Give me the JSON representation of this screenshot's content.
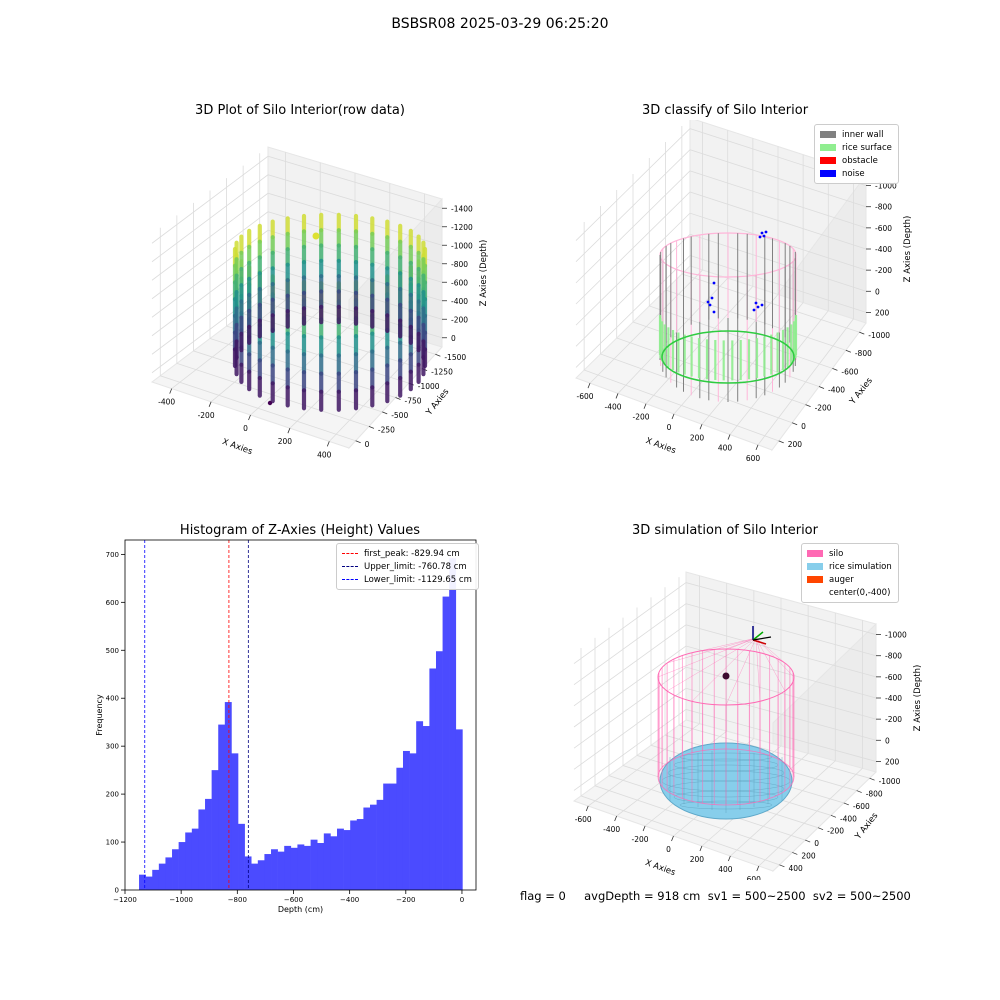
{
  "suptitle": "BSBSR08 2025-03-29 06:25:20",
  "footer": "flag = 0     avgDepth = 918 cm  sv1 = 500~2500  sv2 = 500~2500",
  "colors": {
    "inner_wall": "#808080",
    "rice_surface": "#90ee90",
    "obstacle": "#ff0000",
    "noise": "#0000ff",
    "silo": "#ff69b4",
    "rice_simulation": "#87ceeb",
    "auger": "#ff4500",
    "hist_bar": "#4b4bff"
  },
  "chart_data": [
    {
      "type": "scatter",
      "projection": "3d",
      "colormap": "viridis",
      "title": "3D Plot of Silo Interior(row data)",
      "xlabel": "X Axies",
      "ylabel": "Y Axies",
      "zlabel": "Z Axies (Depth)",
      "xticks": [
        "-400",
        "-200",
        "0",
        "200",
        "400"
      ],
      "yticks": [
        "0",
        "-250",
        "-500",
        "-750",
        "-1000",
        "-1250",
        "-1500"
      ],
      "zticks": [
        "0",
        "-200",
        "-400",
        "-600",
        "-800",
        "-1000",
        "-1200",
        "-1400"
      ],
      "xlim": [
        -500,
        500
      ],
      "ylim": [
        -1550,
        50
      ],
      "zlim": [
        -1450,
        50
      ]
    },
    {
      "type": "scatter",
      "projection": "3d",
      "title": "3D classify of Silo Interior",
      "xlabel": "X Axies",
      "ylabel": "Y Axies",
      "zlabel": "Z Axies (Depth)",
      "xticks": [
        "-600",
        "-400",
        "-200",
        "0",
        "200",
        "400",
        "600"
      ],
      "yticks": [
        "200",
        "0",
        "-200",
        "-400",
        "-600",
        "-800",
        "-1000"
      ],
      "zticks": [
        "200",
        "0",
        "-200",
        "-400",
        "-600",
        "-800",
        "-1000"
      ],
      "xlim": [
        -700,
        700
      ],
      "ylim": [
        -1100,
        300
      ],
      "zlim": [
        -1100,
        300
      ],
      "legend": [
        "inner wall",
        "rice surface",
        "obstacle",
        "noise"
      ],
      "legend_loc": "upper right"
    },
    {
      "type": "bar",
      "title": "Histogram of Z-Axies (Height) Values",
      "xlabel": "Depth (cm)",
      "ylabel": "Frequency",
      "xticks": [
        -1200,
        -1000,
        -800,
        -600,
        -400,
        -200,
        0
      ],
      "yticks": [
        0,
        100,
        200,
        300,
        400,
        500,
        600,
        700
      ],
      "xlim": [
        -1200,
        50
      ],
      "ylim": [
        0,
        730
      ],
      "bin_start": -1150,
      "bin_width": 23.5,
      "values": [
        32,
        28,
        42,
        55,
        68,
        85,
        100,
        120,
        128,
        168,
        190,
        250,
        345,
        392,
        285,
        138,
        70,
        55,
        62,
        75,
        85,
        80,
        92,
        88,
        95,
        92,
        105,
        98,
        118,
        112,
        128,
        125,
        145,
        148,
        172,
        178,
        188,
        222,
        222,
        255,
        290,
        285,
        352,
        342,
        462,
        498,
        612,
        692,
        335
      ],
      "vlines": [
        {
          "label": "first_peak: -829.94 cm",
          "x": -829.94,
          "color": "#ff0000"
        },
        {
          "label": "Upper_limit: -760.78 cm",
          "x": -760.78,
          "color": "#000080"
        },
        {
          "label": "Lower_limit: -1129.65 cm",
          "x": -1129.65,
          "color": "#0000ff"
        }
      ],
      "legend_loc": "upper right"
    },
    {
      "type": "surface",
      "projection": "3d",
      "title": "3D simulation of Silo Interior",
      "xlabel": "X Axies",
      "ylabel": "Y Axies",
      "zlabel": "Z Axies (Depth)",
      "xticks": [
        "-600",
        "-400",
        "-200",
        "0",
        "200",
        "400",
        "600"
      ],
      "yticks": [
        "400",
        "200",
        "0",
        "-200",
        "-400",
        "-600",
        "-800",
        "-1000"
      ],
      "zticks": [
        "200",
        "0",
        "-200",
        "-400",
        "-600",
        "-800",
        "-1000"
      ],
      "xlim": [
        -700,
        700
      ],
      "ylim": [
        -1100,
        500
      ],
      "zlim": [
        -1100,
        300
      ],
      "legend": [
        "silo",
        "rice simulation",
        "auger",
        "center(0,-400)"
      ],
      "legend_loc": "upper right"
    }
  ]
}
